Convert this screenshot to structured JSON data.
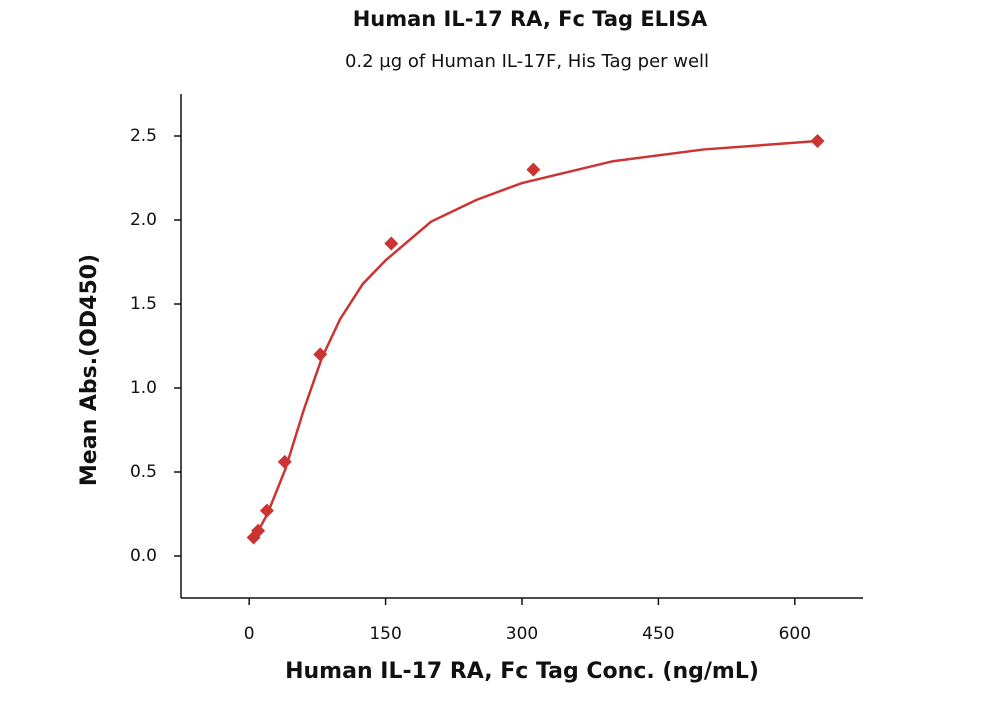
{
  "chart_data": {
    "type": "scatter",
    "title": "Human IL-17 RA, Fc Tag ELISA",
    "subtitle": "0.2 µg of Human IL-17F, His Tag per well",
    "x_label": "Human IL-17 RA, Fc Tag Conc. (ng/mL)",
    "y_label": "Mean Abs.(OD450)",
    "x": [
      4.88,
      9.77,
      19.5,
      39.1,
      78.1,
      156.25,
      312.5,
      625
    ],
    "values": [
      0.11,
      0.15,
      0.27,
      0.56,
      1.2,
      1.86,
      2.3,
      2.47
    ],
    "color": "#cc3333",
    "curve": {
      "x": [
        5,
        20,
        40,
        60,
        80,
        100,
        125,
        150,
        200,
        250,
        300,
        400,
        500,
        625
      ],
      "values": [
        0.1,
        0.25,
        0.52,
        0.87,
        1.18,
        1.41,
        1.62,
        1.76,
        1.99,
        2.12,
        2.22,
        2.35,
        2.42,
        2.47
      ],
      "color": "#cc3333"
    },
    "xlim": [
      -75,
      675
    ],
    "ylim": [
      -0.25,
      2.75
    ],
    "xticks": [
      0,
      150,
      300,
      450,
      600
    ],
    "yticks": [
      {
        "value": 0,
        "label": "0.0"
      },
      {
        "value": 0.5,
        "label": "0.5"
      },
      {
        "value": 1,
        "label": "1.0"
      },
      {
        "value": 1.5,
        "label": "1.5"
      },
      {
        "value": 2,
        "label": "2.0"
      },
      {
        "value": 2.5,
        "label": "2.5"
      }
    ]
  }
}
